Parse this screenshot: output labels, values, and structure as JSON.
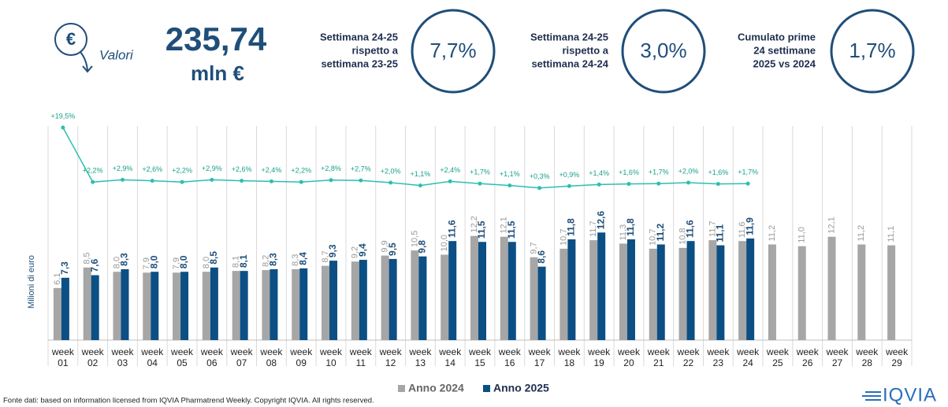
{
  "header": {
    "icon": "€",
    "label": "Valori",
    "value": "235,74",
    "unit": "mln €"
  },
  "kpis": [
    {
      "lines": [
        "Settimana 24-25",
        "rispetto a",
        "settimana 23-25"
      ],
      "value": "7,7%"
    },
    {
      "lines": [
        "Settimana 24-25",
        "rispetto a",
        "settimana 24-24"
      ],
      "value": "3,0%"
    },
    {
      "lines": [
        "Cumulato prime",
        "24 settimane",
        "2025 vs 2024"
      ],
      "value": "1,7%"
    }
  ],
  "chart_data": {
    "type": "bar",
    "y_label": "Milioni di euro",
    "categories": [
      "week 01",
      "week 02",
      "week 03",
      "week 04",
      "week 05",
      "week 06",
      "week 07",
      "week 08",
      "week 09",
      "week 10",
      "week 11",
      "week 12",
      "week 13",
      "week 14",
      "week 15",
      "week 16",
      "week 17",
      "week 18",
      "week 19",
      "week 20",
      "week 21",
      "week 22",
      "week 23",
      "week 24",
      "week 25",
      "week 26",
      "week 27",
      "week 28",
      "week 29"
    ],
    "series": [
      {
        "name": "Anno 2024",
        "color": "#a6a6a6",
        "values": [
          6.1,
          8.5,
          8.0,
          7.9,
          7.9,
          8.0,
          8.1,
          8.2,
          8.3,
          8.7,
          9.2,
          9.9,
          10.5,
          10.0,
          12.2,
          12.1,
          9.7,
          10.7,
          11.7,
          11.3,
          10.7,
          10.8,
          11.7,
          11.6,
          11.2,
          11.0,
          12.1,
          11.2,
          11.1
        ],
        "value_labels": [
          "6,1",
          "8,5",
          "8,0",
          "7,9",
          "7,9",
          "8,0",
          "8,1",
          "8,2",
          "8,3",
          "8,7",
          "9,2",
          "9,9",
          "10,5",
          "10,0",
          "12,2",
          "12,1",
          "9,7",
          "10,7",
          "11,7",
          "11,3",
          "10,7",
          "10,8",
          "11,7",
          "11,6",
          "11,2",
          "11,0",
          "12,1",
          "11,2",
          "11,1"
        ]
      },
      {
        "name": "Anno 2025",
        "color": "#0b4f84",
        "values": [
          7.3,
          7.6,
          8.3,
          8.0,
          8.0,
          8.5,
          8.1,
          8.3,
          8.4,
          9.3,
          9.4,
          9.5,
          9.8,
          11.6,
          11.5,
          11.5,
          8.6,
          11.8,
          12.6,
          11.8,
          11.2,
          11.6,
          11.1,
          11.9,
          null,
          null,
          null,
          null,
          null
        ],
        "value_labels": [
          "7,3",
          "7,6",
          "8,3",
          "8,0",
          "8,0",
          "8,5",
          "8,1",
          "8,3",
          "8,4",
          "9,3",
          "9,4",
          "9,5",
          "9,8",
          "11,6",
          "11,5",
          "11,5",
          "8,6",
          "11,8",
          "12,6",
          "11,8",
          "11,2",
          "11,6",
          "11,1",
          "11,9",
          null,
          null,
          null,
          null,
          null
        ]
      },
      {
        "type": "line",
        "axis": "y2",
        "color": "#2bbfb0",
        "values": [
          19.5,
          2.2,
          2.9,
          2.6,
          2.2,
          2.9,
          2.6,
          2.4,
          2.2,
          2.8,
          2.7,
          2.0,
          1.1,
          2.4,
          1.7,
          1.1,
          0.3,
          0.9,
          1.4,
          1.6,
          1.7,
          2.0,
          1.6,
          1.7,
          null,
          null,
          null,
          null,
          null
        ],
        "value_labels": [
          "+19,5%",
          "+2,2%",
          "+2,9%",
          "+2,6%",
          "+2,2%",
          "+2,9%",
          "+2,6%",
          "+2,4%",
          "+2,2%",
          "+2,8%",
          "+2,7%",
          "+2,0%",
          "+1,1%",
          "+2,4%",
          "+1,7%",
          "+1,1%",
          "+0,3%",
          "+0,9%",
          "+1,4%",
          "+1,6%",
          "+1,7%",
          "+2,0%",
          "+1,6%",
          "+1,7%",
          null,
          null,
          null,
          null,
          null
        ]
      }
    ],
    "ylim": [
      0,
      26
    ],
    "y2lim": [
      -48,
      22.5
    ],
    "legend": "bottom"
  },
  "footer": {
    "source": "Fonte dati: based on information licensed from IQVIA Pharmatrend Weekly. Copyright IQVIA. All rights reserved.",
    "logo": "IQVIA"
  }
}
